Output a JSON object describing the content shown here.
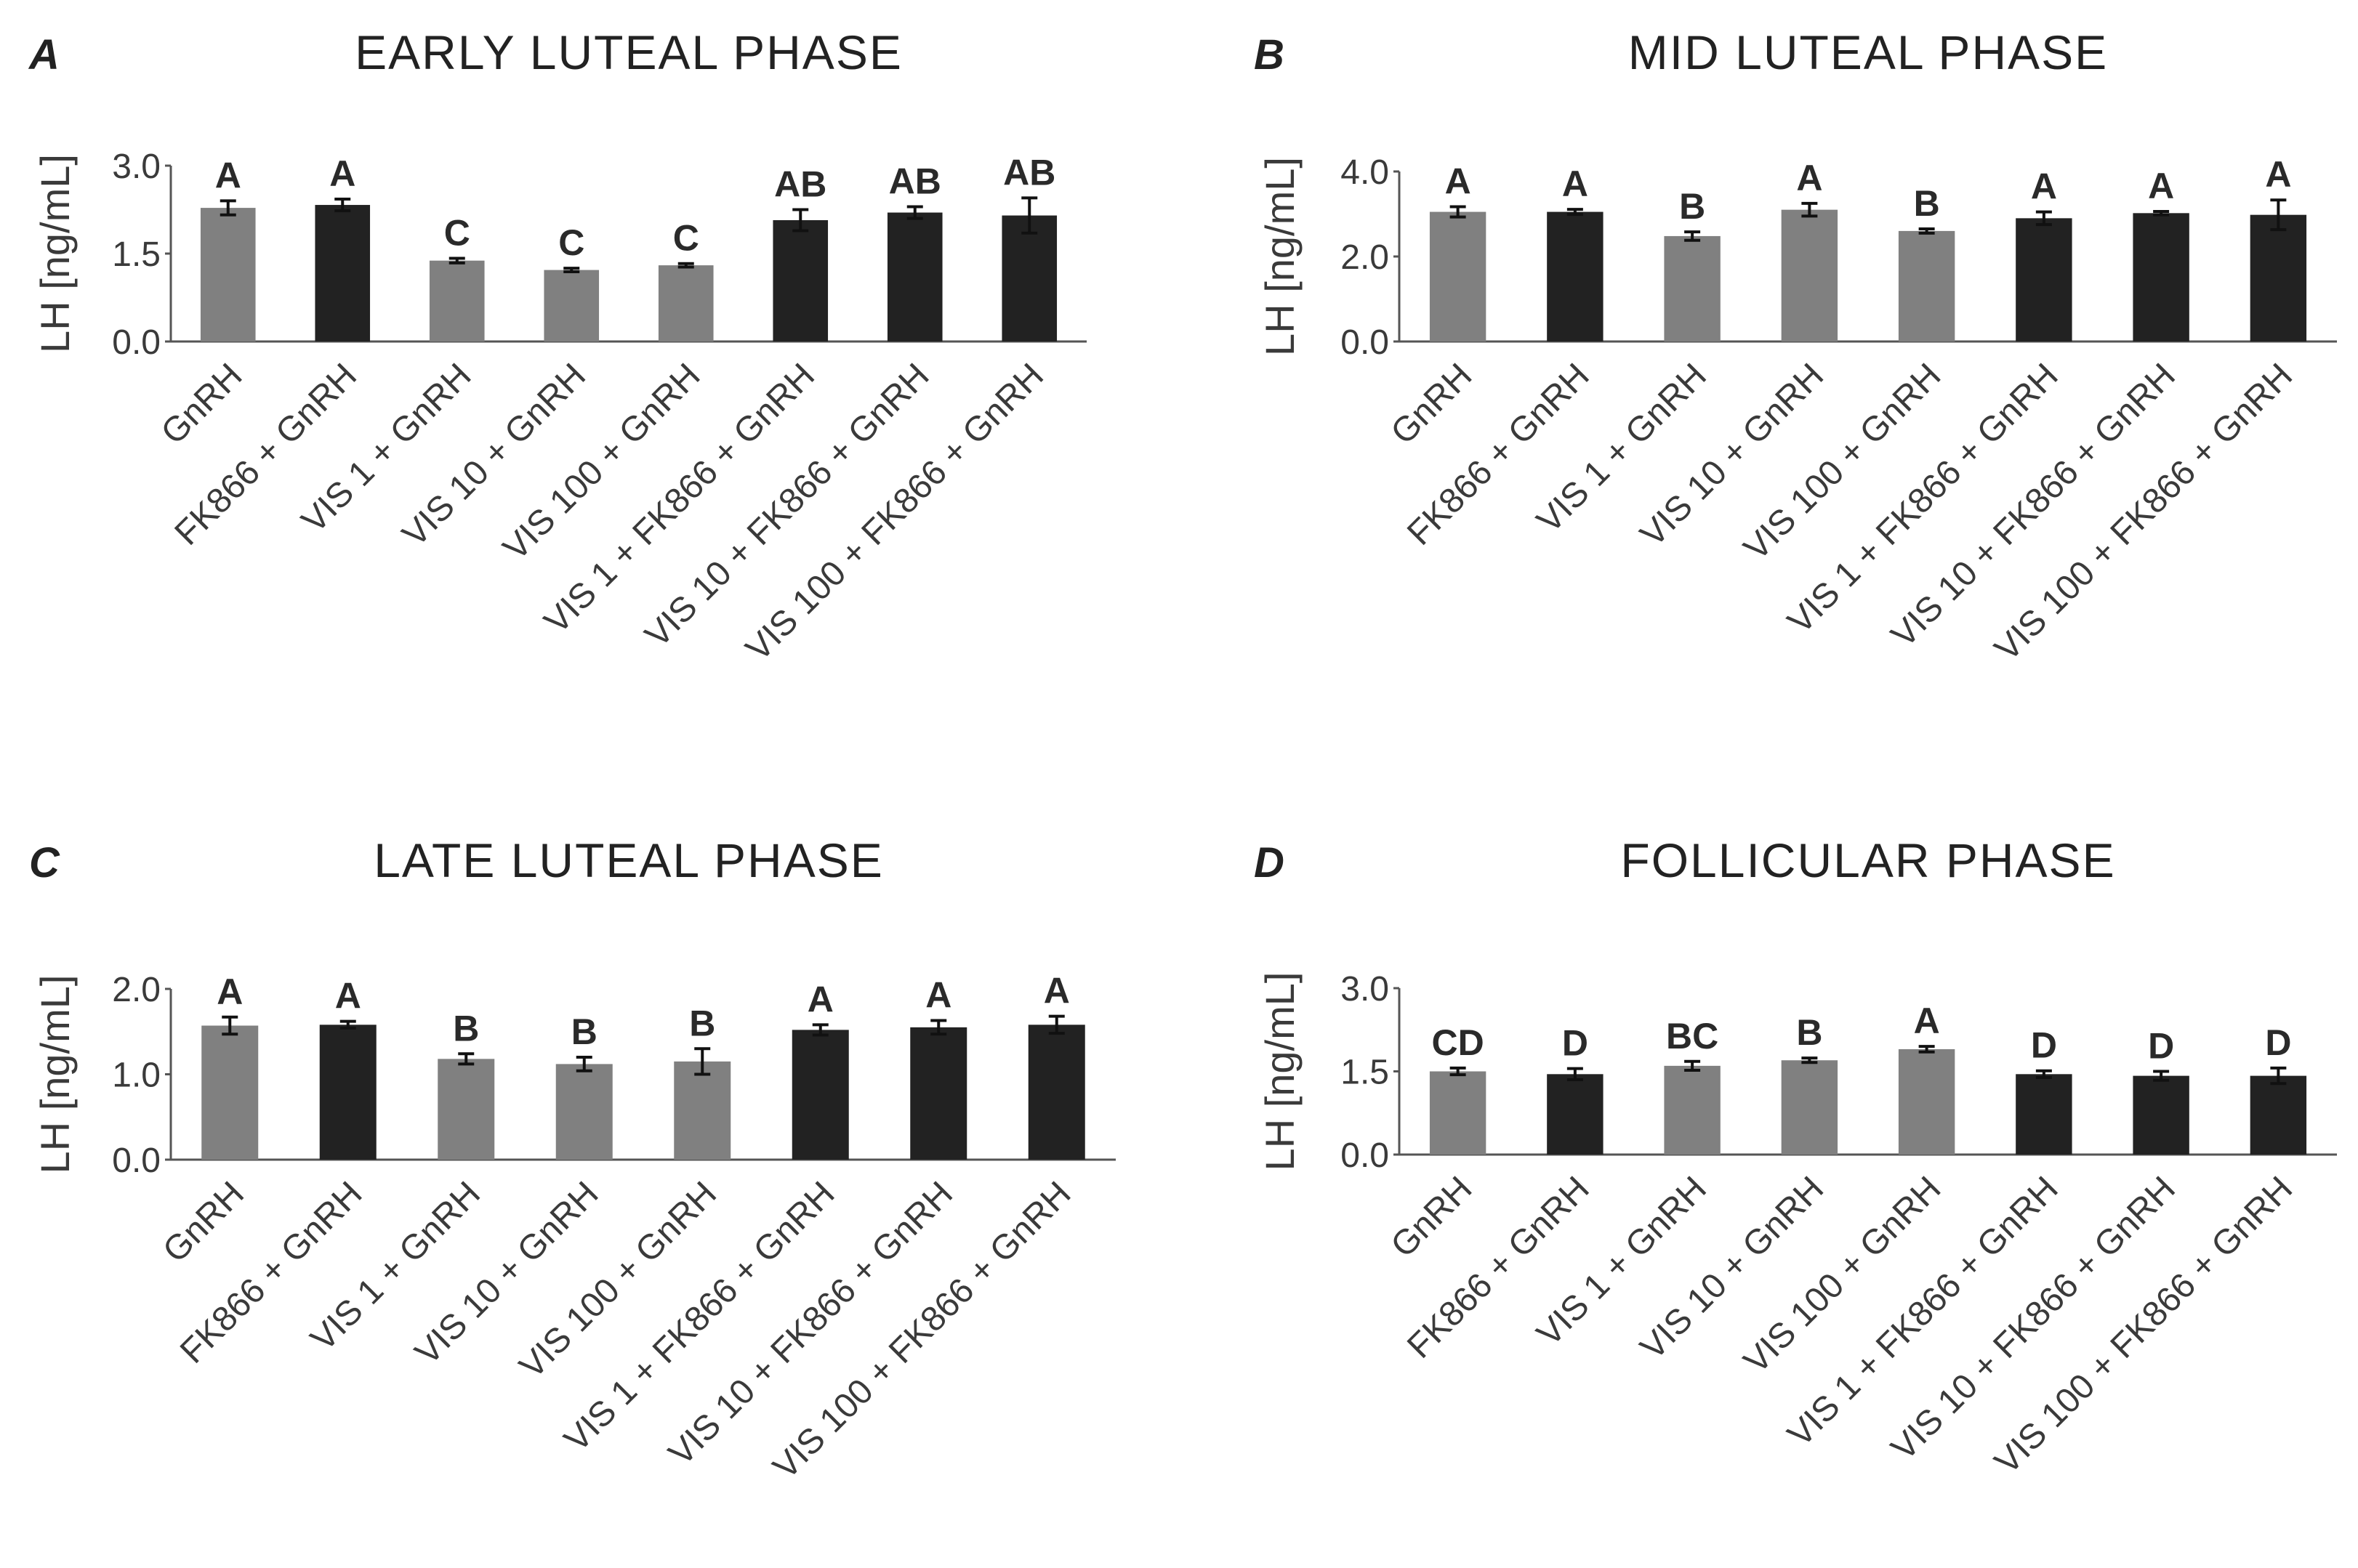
{
  "figure": {
    "colors": {
      "gray_bar": "#808080",
      "black_bar": "#222222",
      "axis": "#555555",
      "text": "#333333"
    }
  },
  "chart_data": [
    {
      "panel": "A",
      "title": "EARLY LUTEAL PHASE",
      "type": "bar",
      "ylabel": "LH [ng/mL]",
      "ylim": [
        0,
        3.0
      ],
      "yticks": [
        "0.0",
        "1.5",
        "3.0"
      ],
      "categories": [
        "GnRH",
        "FK866 + GnRH",
        "VIS 1 + GnRH",
        "VIS 10 + GnRH",
        "VIS 100 + GnRH",
        "VIS 1 + FK866 + GnRH",
        "VIS 10 + FK866 + GnRH",
        "VIS 100 + FK866 + GnRH"
      ],
      "values": [
        2.28,
        2.33,
        1.38,
        1.22,
        1.3,
        2.07,
        2.2,
        2.15
      ],
      "errors": [
        0.12,
        0.1,
        0.04,
        0.03,
        0.03,
        0.18,
        0.1,
        0.3
      ],
      "bar_colors": [
        "gray",
        "black",
        "gray",
        "gray",
        "gray",
        "black",
        "black",
        "black"
      ],
      "significance": [
        "A",
        "A",
        "C",
        "C",
        "C",
        "AB",
        "AB",
        "AB"
      ]
    },
    {
      "panel": "B",
      "title": "MID LUTEAL PHASE",
      "type": "bar",
      "ylabel": "LH [ng/mL]",
      "ylim": [
        0,
        4.0
      ],
      "yticks": [
        "0.0",
        "2.0",
        "4.0"
      ],
      "categories": [
        "GnRH",
        "FK866 + GnRH",
        "VIS 1 + GnRH",
        "VIS 10 + GnRH",
        "VIS 100 + GnRH",
        "VIS 1 + FK866 + GnRH",
        "VIS 10 + FK866 + GnRH",
        "VIS 100 + FK866 + GnRH"
      ],
      "values": [
        3.05,
        3.05,
        2.48,
        3.1,
        2.6,
        2.9,
        3.02,
        2.98
      ],
      "errors": [
        0.12,
        0.06,
        0.1,
        0.15,
        0.05,
        0.15,
        0.04,
        0.35
      ],
      "bar_colors": [
        "gray",
        "black",
        "gray",
        "gray",
        "gray",
        "black",
        "black",
        "black"
      ],
      "significance": [
        "A",
        "A",
        "B",
        "A",
        "B",
        "A",
        "A",
        "A"
      ]
    },
    {
      "panel": "C",
      "title": "LATE LUTEAL PHASE",
      "type": "bar",
      "ylabel": "LH [ng/mL]",
      "ylim": [
        0,
        2.0
      ],
      "yticks": [
        "0.0",
        "1.0",
        "2.0"
      ],
      "categories": [
        "GnRH",
        "FK866 + GnRH",
        "VIS 1 + GnRH",
        "VIS 10 + GnRH",
        "VIS 100 + GnRH",
        "VIS 1 + FK866 + GnRH",
        "VIS 10 + FK866 + GnRH",
        "VIS 100 + FK866 + GnRH"
      ],
      "values": [
        1.57,
        1.58,
        1.18,
        1.12,
        1.15,
        1.52,
        1.55,
        1.58
      ],
      "errors": [
        0.1,
        0.04,
        0.06,
        0.08,
        0.15,
        0.06,
        0.08,
        0.1
      ],
      "bar_colors": [
        "gray",
        "black",
        "gray",
        "gray",
        "gray",
        "black",
        "black",
        "black"
      ],
      "significance": [
        "A",
        "A",
        "B",
        "B",
        "B",
        "A",
        "A",
        "A"
      ]
    },
    {
      "panel": "D",
      "title": "FOLLICULAR PHASE",
      "type": "bar",
      "ylabel": "LH [ng/mL]",
      "ylim": [
        0,
        3.0
      ],
      "yticks": [
        "0.0",
        "1.5",
        "3.0"
      ],
      "categories": [
        "GnRH",
        "FK866 + GnRH",
        "VIS 1 + GnRH",
        "VIS 10 + GnRH",
        "VIS 100 + GnRH",
        "VIS 1 + FK866 + GnRH",
        "VIS 10 + FK866 + GnRH",
        "VIS 100 + FK866 + GnRH"
      ],
      "values": [
        1.5,
        1.45,
        1.6,
        1.7,
        1.9,
        1.45,
        1.42,
        1.42
      ],
      "errors": [
        0.06,
        0.1,
        0.08,
        0.04,
        0.05,
        0.06,
        0.08,
        0.14
      ],
      "bar_colors": [
        "gray",
        "black",
        "gray",
        "gray",
        "gray",
        "black",
        "black",
        "black"
      ],
      "significance": [
        "CD",
        "D",
        "BC",
        "B",
        "A",
        "D",
        "D",
        "D"
      ]
    }
  ]
}
